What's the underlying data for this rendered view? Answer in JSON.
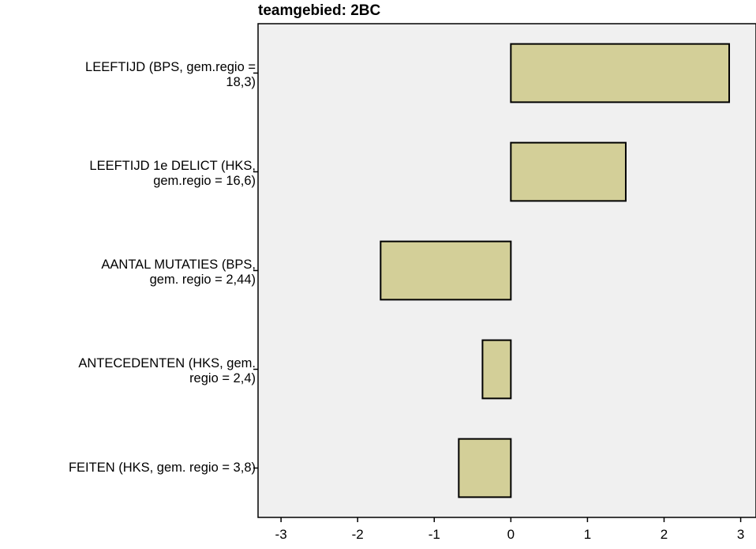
{
  "chart_data": {
    "type": "bar",
    "orientation": "horizontal",
    "title": "teamgebied: 2BC",
    "categories": [
      [
        "LEEFTIJD (BPS, gem.regio =",
        "18,3)"
      ],
      [
        "LEEFTIJD 1e DELICT (HKS,",
        "gem.regio = 16,6)"
      ],
      [
        "AANTAL MUTATIES (BPS,",
        "gem. regio = 2,44)"
      ],
      [
        "ANTECEDENTEN (HKS, gem.",
        "regio = 2,4)"
      ],
      [
        "FEITEN (HKS, gem. regio = 3,8)"
      ]
    ],
    "values": [
      2.85,
      1.5,
      -1.7,
      -0.37,
      -0.68
    ],
    "xlim": [
      -3.3,
      3.2
    ],
    "xticks": [
      "-3",
      "-2",
      "-1",
      "0",
      "1",
      "2",
      "3"
    ],
    "xlabel": "",
    "ylabel": "",
    "grid": false,
    "colors": {
      "bar_fill": "#d3cf98",
      "bar_stroke": "#000000",
      "plot_bg": "#f0f0f0"
    }
  }
}
